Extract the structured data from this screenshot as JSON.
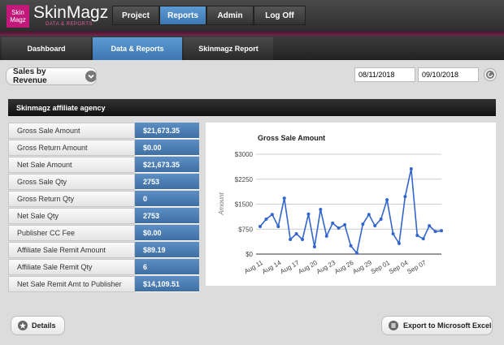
{
  "header": {
    "logo_mark": [
      "Skin",
      "Magz"
    ],
    "logo": "SkinMagz",
    "logo_sub": "DATA & REPORTS",
    "nav": [
      "Project",
      "Reports",
      "Admin",
      "Log Off"
    ]
  },
  "tabs": [
    "Dashboard",
    "Data & Reports",
    "Skinmagz Report"
  ],
  "filter": {
    "report": "Sales by Revenue",
    "start": "08/11/2018",
    "end": "09/10/2018"
  },
  "section_title": "Skinmagz affiliate agency",
  "table": {
    "rows": [
      [
        "Gross Sale Amount",
        "$21,673.35"
      ],
      [
        "Gross Return Amount",
        "$0.00"
      ],
      [
        "Net Sale Amount",
        "$21,673.35"
      ],
      [
        "Gross Sale Qty",
        "2753"
      ],
      [
        "Gross Return Qty",
        "0"
      ],
      [
        "Net Sale Qty",
        "2753"
      ],
      [
        "Publisher CC Fee",
        "$0.00"
      ],
      [
        "Affiliate Sale Remit Amount",
        "$89.19"
      ],
      [
        "Affiliate Sale Remit Qty",
        "6"
      ],
      [
        "Net Sale Remit Amt to Publisher",
        "$14,109.51"
      ]
    ]
  },
  "chart_data": {
    "type": "line",
    "title": "Gross Sale Amount",
    "y_label": "Amount",
    "categories": [
      "Aug 11",
      null,
      null,
      "Aug 14",
      null,
      null,
      "Aug 17",
      null,
      null,
      "Aug 20",
      null,
      null,
      "Aug 23",
      null,
      null,
      "Aug 26",
      null,
      null,
      "Aug 29",
      null,
      null,
      "Sep 01",
      null,
      null,
      "Sep 04",
      null,
      null,
      "Sep 07",
      null,
      null,
      null
    ],
    "values": [
      830,
      1050,
      1190,
      830,
      1680,
      440,
      610,
      440,
      1200,
      220,
      1340,
      540,
      930,
      780,
      880,
      250,
      30,
      900,
      1190,
      850,
      1050,
      1630,
      610,
      320,
      1730,
      2560,
      560,
      460,
      850,
      680,
      700
    ],
    "color": "#3366cc",
    "ylim": [
      0,
      3000
    ],
    "yticks": [
      {
        "value": 0,
        "label": "$0"
      },
      {
        "value": 750,
        "label": "$750"
      },
      {
        "value": 1500,
        "label": "$1500"
      },
      {
        "value": 2250,
        "label": "$2250"
      },
      {
        "value": 3000,
        "label": "$3000"
      }
    ],
    "grid": true
  },
  "buttons": [
    "Details",
    "Export to Microsoft Excel"
  ]
}
